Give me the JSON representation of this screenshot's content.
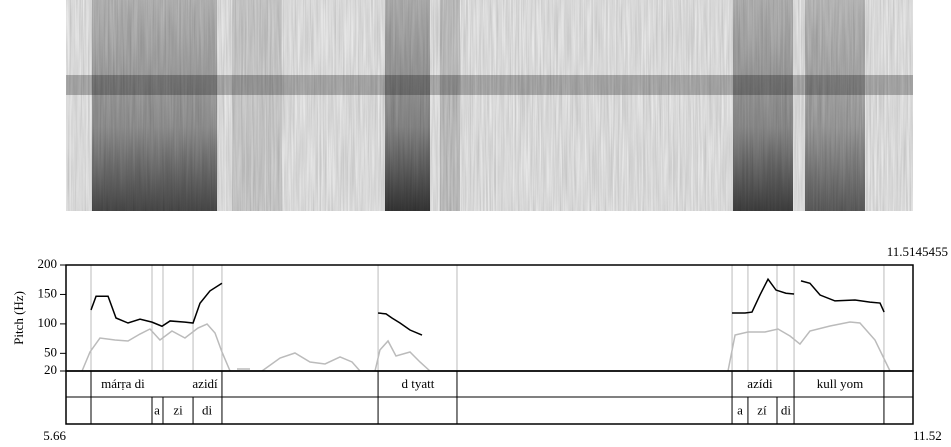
{
  "chart_data": {
    "type": "line",
    "y_label": "Pitch (Hz)",
    "cursor_time": 11.5145455,
    "xlim": [
      5.66,
      11.52
    ],
    "xticks": [
      5.66,
      11.52
    ],
    "ylim": [
      20,
      200
    ],
    "yticks": [
      20,
      50,
      100,
      150,
      200
    ],
    "series": [
      {
        "color": "#000000",
        "x": [
          5.833,
          5.868,
          5.951,
          6.006,
          6.089,
          6.172,
          6.255,
          6.324,
          6.38,
          6.483,
          6.539,
          6.587,
          6.656,
          6.739,
          null,
          7.819,
          7.874,
          7.915,
          7.971,
          8.04,
          8.123,
          null,
          10.268,
          10.358,
          10.406,
          10.461,
          10.517,
          10.572,
          10.641,
          10.697,
          null,
          10.745,
          10.807,
          10.877,
          10.98,
          11.119,
          11.222,
          11.292,
          11.32
        ],
        "values": [
          123.6,
          147,
          147,
          110,
          101.5,
          108,
          103,
          96,
          105,
          103,
          101.5,
          135,
          156,
          169,
          null,
          118.5,
          117,
          110,
          101.5,
          89.6,
          81,
          null,
          118.5,
          118.5,
          120,
          149,
          176,
          157.5,
          152,
          150.7,
          null,
          173,
          169,
          149,
          139,
          140.5,
          137,
          135.4,
          120
        ]
      },
      {
        "color": "#bbbbbb",
        "x": [
          5.771,
          5.826,
          5.895,
          5.999,
          6.089,
          6.172,
          6.241,
          6.31,
          6.393,
          6.483,
          6.573,
          6.636,
          6.691,
          6.739,
          6.795,
          null,
          6.843,
          6.933,
          null,
          7.016,
          7.141,
          7.244,
          7.348,
          7.452,
          7.556,
          7.639,
          7.694,
          null,
          7.798,
          7.832,
          7.888,
          7.943,
          8.04,
          8.109,
          8.178,
          null,
          10.24,
          10.289,
          10.378,
          10.496,
          10.586,
          10.669,
          10.738,
          10.807,
          10.946,
          11.084,
          11.153,
          11.257,
          11.361
        ],
        "values": [
          20,
          52.3,
          76,
          72.6,
          71,
          82.8,
          91.3,
          72.6,
          87.9,
          76,
          93,
          99.8,
          84.5,
          52.3,
          20,
          null,
          23.4,
          23.4,
          null,
          20,
          42,
          50.6,
          35.3,
          31.9,
          43.8,
          35.3,
          20,
          null,
          20,
          55.7,
          71,
          45.5,
          52.3,
          35.3,
          20,
          null,
          20,
          81.1,
          86.2,
          86.2,
          91.3,
          79.4,
          65.8,
          87.9,
          96.4,
          103.2,
          101.5,
          72.6,
          20
        ]
      }
    ],
    "tiers": [
      {
        "boundaries": [
          5.833,
          6.739,
          7.819,
          8.365,
          10.268,
          10.697,
          11.319
        ],
        "labels": [
          {
            "time": 6.054,
            "text": "márṛa di"
          },
          {
            "time": 6.622,
            "text": "azidí"
          },
          {
            "time": 8.095,
            "text": "d tyatt"
          },
          {
            "time": 10.461,
            "text": "azídi"
          },
          {
            "time": 11.015,
            "text": "kull yom"
          }
        ]
      },
      {
        "boundaries": [
          5.833,
          6.255,
          6.331,
          6.539,
          6.739,
          7.819,
          8.365,
          10.268,
          10.378,
          10.579,
          10.697,
          11.319
        ],
        "labels": [
          {
            "time": 6.29,
            "text": "a"
          },
          {
            "time": 6.435,
            "text": "zi"
          },
          {
            "time": 6.636,
            "text": "di"
          },
          {
            "time": 10.323,
            "text": "a"
          },
          {
            "time": 10.475,
            "text": "zí"
          },
          {
            "time": 10.641,
            "text": "di"
          }
        ]
      }
    ]
  }
}
